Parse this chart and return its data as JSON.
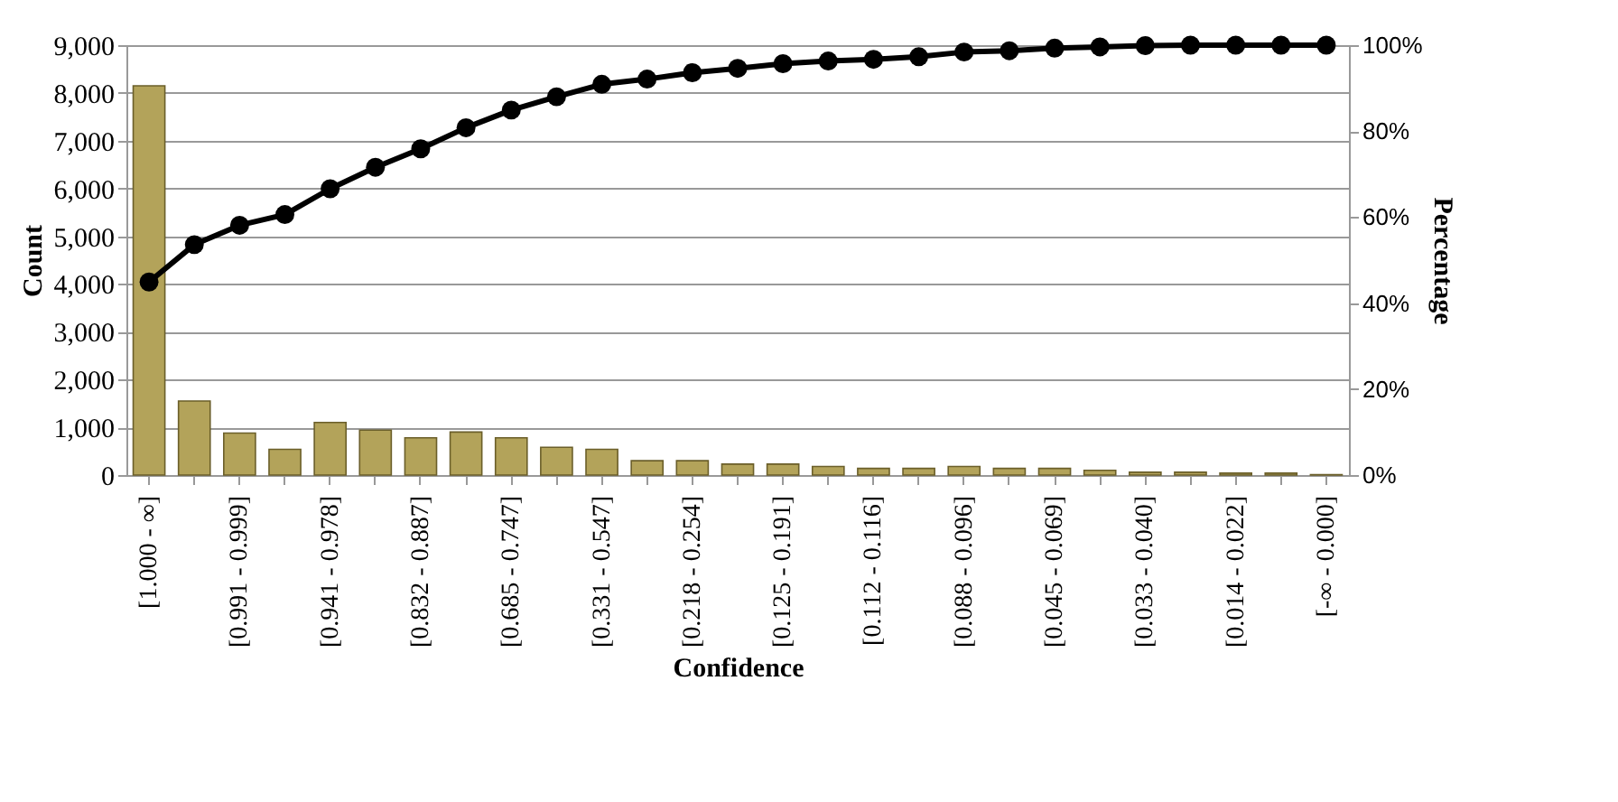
{
  "chart_data": {
    "type": "bar",
    "xlabel": "Confidence",
    "ylabel": "Count",
    "y2label": "Percentage",
    "categories": [
      "[1.000 - ∞]",
      null,
      "[0.991 - 0.999]",
      null,
      "[0.941 - 0.978]",
      null,
      "[0.832 - 0.887]",
      null,
      "[0.685 - 0.747]",
      null,
      "[0.331 - 0.547]",
      null,
      "[0.218 - 0.254]",
      null,
      "[0.125 - 0.191]",
      null,
      "[0.112 - 0.116]",
      null,
      "[0.088 - 0.096]",
      null,
      "[0.045 - 0.069]",
      null,
      "[0.033 - 0.040]",
      null,
      "[0.014 - 0.022]",
      null,
      "[-∞ - 0.000]"
    ],
    "series": [
      {
        "color": "#b3a35a",
        "values": [
          8150,
          1550,
          880,
          540,
          1100,
          940,
          780,
          900,
          780,
          580,
          540,
          300,
          300,
          230,
          230,
          180,
          140,
          140,
          180,
          140,
          140,
          100,
          60,
          60,
          40,
          40,
          10
        ]
      },
      {
        "type": "line",
        "axis": "y2",
        "color": "#000000",
        "values": [
          44.9,
          53.6,
          58.1,
          60.6,
          66.6,
          71.6,
          75.9,
          80.8,
          84.9,
          88.0,
          90.9,
          92.1,
          93.6,
          94.6,
          95.7,
          96.3,
          96.7,
          97.3,
          98.4,
          98.7,
          99.3,
          99.6,
          99.9,
          100,
          100,
          100,
          100
        ]
      }
    ],
    "ylim": [
      0,
      9000
    ],
    "yticks": [
      0,
      {
        "value": 1000,
        "label": "1,000"
      },
      {
        "value": 2000,
        "label": "2,000"
      },
      {
        "value": 3000,
        "label": "3,000"
      },
      {
        "value": 4000,
        "label": "4,000"
      },
      {
        "value": 5000,
        "label": "5,000"
      },
      {
        "value": 6000,
        "label": "6,000"
      },
      {
        "value": 7000,
        "label": "7,000"
      },
      {
        "value": 8000,
        "label": "8,000"
      },
      {
        "value": 9000,
        "label": "9,000"
      }
    ],
    "y2lim": [
      0,
      100
    ],
    "y2ticks": [
      {
        "value": 0,
        "label": "0%"
      },
      {
        "value": 20,
        "label": "20%"
      },
      {
        "value": 40,
        "label": "40%"
      },
      {
        "value": 60,
        "label": "60%"
      },
      {
        "value": 80,
        "label": "80%"
      },
      {
        "value": 100,
        "label": "100%"
      }
    ],
    "grid": "y",
    "marker": "circle",
    "line_style": "solid"
  }
}
